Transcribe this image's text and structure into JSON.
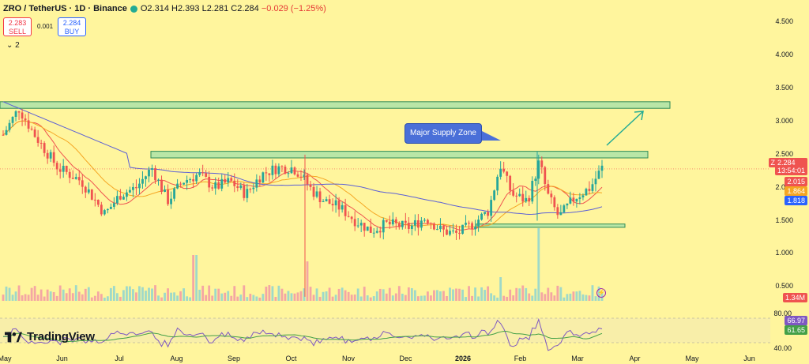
{
  "header": {
    "symbol": "ZRO / TetherUS · 1D · Binance",
    "open": "O2.314",
    "high": "H2.393",
    "low": "L2.281",
    "close": "C2.284",
    "change": "−0.029 (−1.25%)"
  },
  "trade": {
    "sell_price": "2.283",
    "sell_label": "SELL",
    "spread": "0.001",
    "buy_price": "2.284",
    "buy_label": "BUY"
  },
  "indicator_count": "2",
  "logo_text": "TradingView",
  "annotation": "Major Supply Zone",
  "price_tags": {
    "symbol": "ZROUSDT",
    "last": "2.284",
    "countdown": "13:54:01",
    "ma_fast": "2.015",
    "ma_mid": "1.864",
    "ma_slow": "1.818",
    "volume": "1.34M",
    "rsi": "66.97",
    "rsi_ma": "61.65"
  },
  "colors": {
    "background": "#FFF59D",
    "up": "#26a69a",
    "down": "#ef5350",
    "ma_fast": "#ef5350",
    "ma_mid": "#f5a623",
    "ma_slow": "#5b5fd6",
    "zone_fill": "#B9E6A6",
    "zone_border": "#2e8b57"
  },
  "chart_data": {
    "type": "candlestick",
    "x_ticks": [
      "May",
      "Jun",
      "Jul",
      "Aug",
      "Sep",
      "Oct",
      "Nov",
      "Dec",
      "2026",
      "Feb",
      "Mar",
      "Apr",
      "May",
      "Jun"
    ],
    "y_ticks": [
      "4.500",
      "4.000",
      "3.500",
      "3.000",
      "2.500",
      "2.000",
      "1.500",
      "1.000",
      "0.500"
    ],
    "ylim": [
      0.3,
      4.6
    ],
    "price_path": [
      [
        0,
        2.8
      ],
      [
        0.02,
        3.2
      ],
      [
        0.04,
        2.8
      ],
      [
        0.07,
        2.3
      ],
      [
        0.1,
        2.1
      ],
      [
        0.13,
        1.6
      ],
      [
        0.15,
        1.9
      ],
      [
        0.17,
        2.0
      ],
      [
        0.19,
        2.3
      ],
      [
        0.21,
        1.8
      ],
      [
        0.23,
        2.1
      ],
      [
        0.25,
        2.2
      ],
      [
        0.27,
        2.0
      ],
      [
        0.29,
        2.1
      ],
      [
        0.31,
        1.9
      ],
      [
        0.33,
        2.2
      ],
      [
        0.35,
        2.3
      ],
      [
        0.37,
        2.3
      ],
      [
        0.38,
        2.2
      ],
      [
        0.395,
        1.95
      ],
      [
        0.41,
        1.8
      ],
      [
        0.43,
        1.7
      ],
      [
        0.45,
        1.5
      ],
      [
        0.47,
        1.35
      ],
      [
        0.49,
        1.45
      ],
      [
        0.52,
        1.4
      ],
      [
        0.54,
        1.55
      ],
      [
        0.56,
        1.35
      ],
      [
        0.58,
        1.3
      ],
      [
        0.6,
        1.45
      ],
      [
        0.62,
        1.65
      ],
      [
        0.635,
        2.35
      ],
      [
        0.65,
        1.9
      ],
      [
        0.67,
        1.8
      ],
      [
        0.685,
        2.4
      ],
      [
        0.695,
        1.9
      ],
      [
        0.71,
        1.55
      ],
      [
        0.73,
        1.85
      ],
      [
        0.75,
        2.0
      ],
      [
        0.765,
        2.3
      ]
    ],
    "volume_peak_labels": [
      "1.34M"
    ],
    "rsi": {
      "levels": [
        "80.00",
        "40.00"
      ],
      "last": 66.97,
      "ma_last": 61.65
    },
    "supply_zones": [
      {
        "low": 3.2,
        "high": 3.3
      },
      {
        "low": 2.45,
        "high": 2.55
      }
    ],
    "support_zone": {
      "low": 1.4,
      "high": 1.45
    },
    "moving_averages": {
      "fast": 2.015,
      "mid": 1.864,
      "slow": 1.818
    },
    "last_price": 2.284
  }
}
